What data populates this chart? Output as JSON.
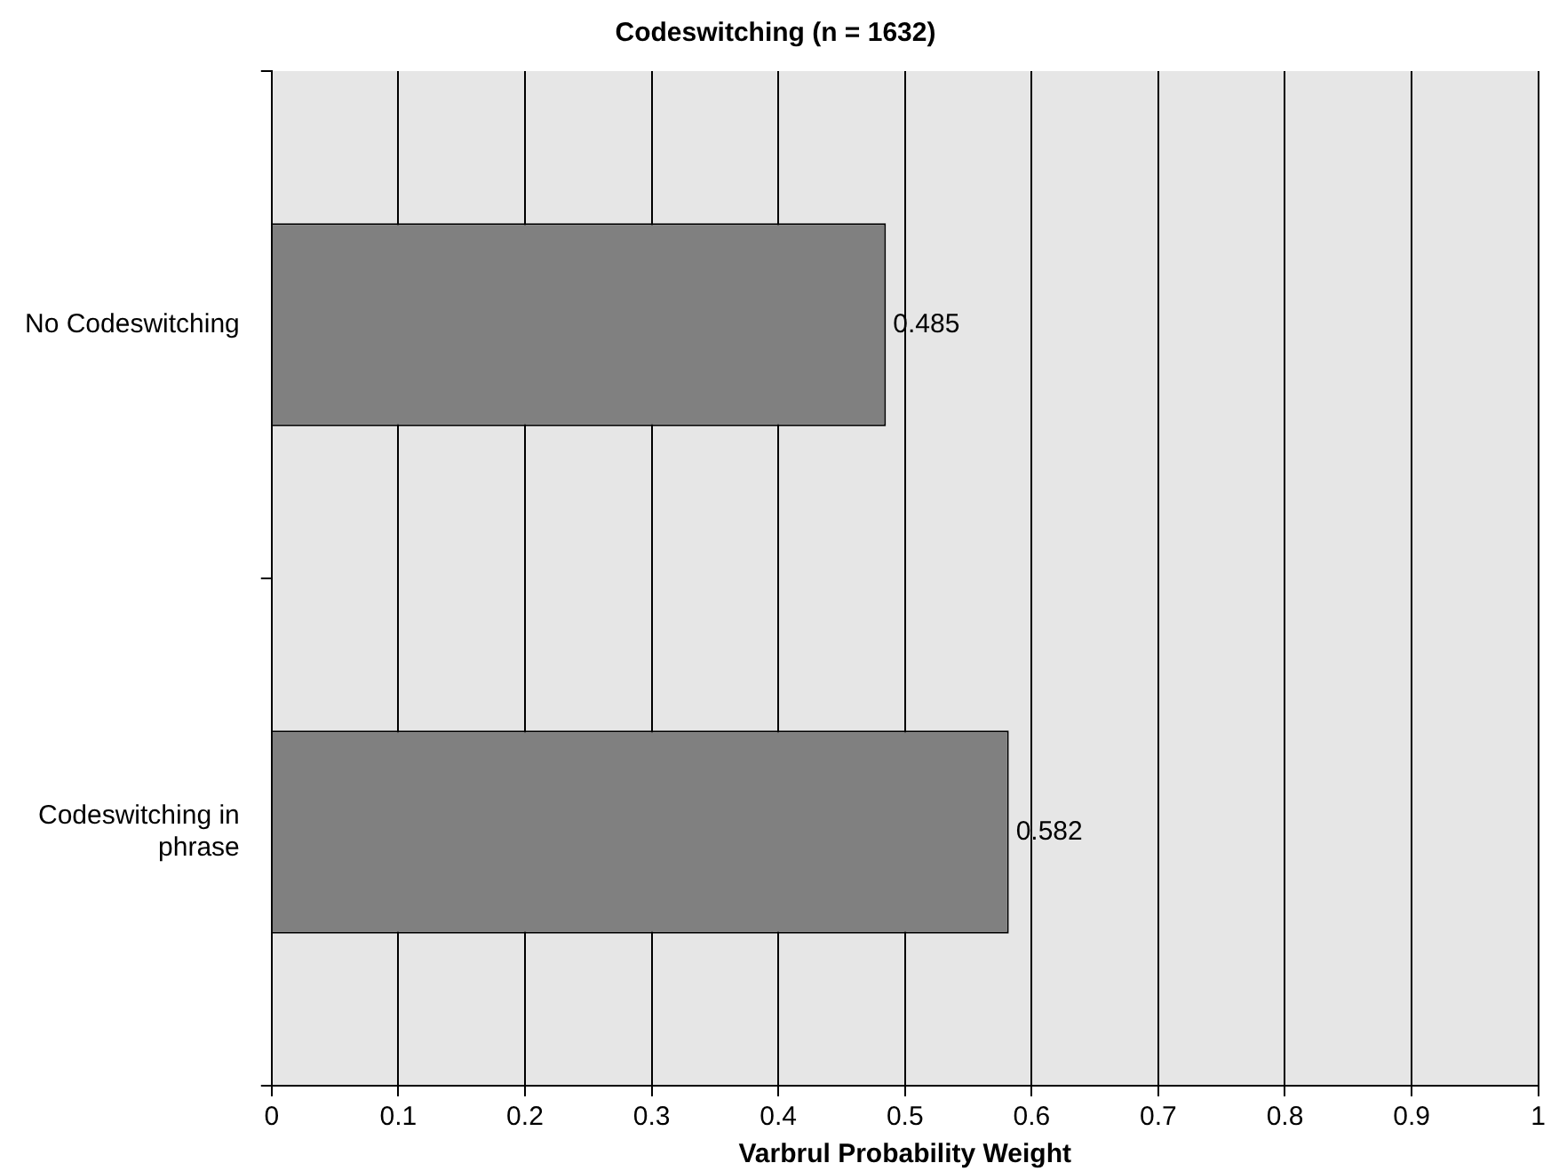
{
  "chart_data": {
    "type": "bar",
    "orientation": "horizontal",
    "title": "Codeswitching (n = 1632)",
    "xlabel": "Varbrul Probability Weight",
    "categories": [
      "No Codeswitching",
      "Codeswitching in phrase"
    ],
    "values": [
      0.485,
      0.582
    ],
    "color": "#808080",
    "xlim": [
      0,
      1
    ],
    "xticks": [
      0,
      0.1,
      0.2,
      0.3,
      0.4,
      0.5,
      0.6,
      0.7,
      0.8,
      0.9,
      1
    ],
    "grid": "x",
    "data_labels": true
  }
}
